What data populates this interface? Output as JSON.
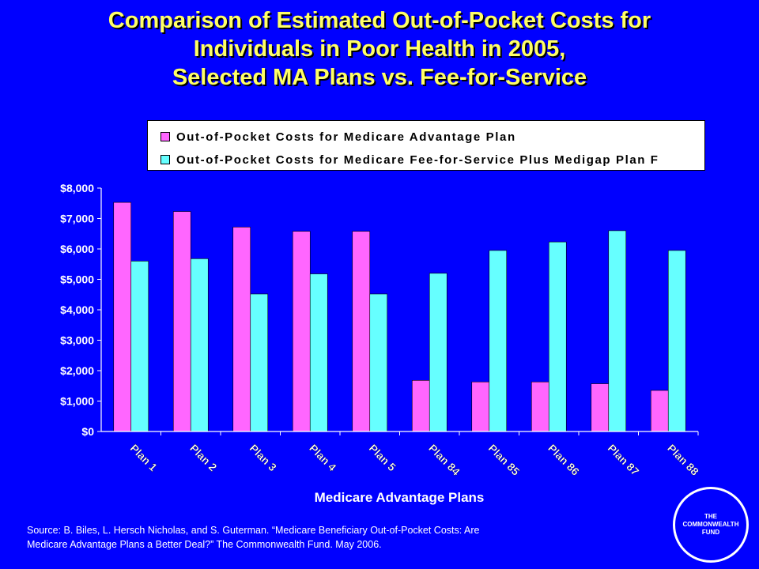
{
  "title_lines": [
    "Comparison of Estimated Out-of-Pocket Costs for",
    "Individuals in Poor Health in 2005,",
    "Selected MA Plans vs. Fee-for-Service"
  ],
  "colors": {
    "background": "#0000FF",
    "title": "#FFFF66",
    "ma": "#FF66FF",
    "ffs": "#66FFFF"
  },
  "chart_data": {
    "type": "bar",
    "categories": [
      "Plan 1",
      "Plan 2",
      "Plan 3",
      "Plan 4",
      "Plan 5",
      "Plan 84",
      "Plan 85",
      "Plan 86",
      "Plan 87",
      "Plan 88"
    ],
    "series": [
      {
        "name": "Out-of-Pocket Costs for Medicare Advantage Plan",
        "values": [
          7530,
          7230,
          6720,
          6580,
          6580,
          1680,
          1630,
          1630,
          1570,
          1350
        ]
      },
      {
        "name": "Out-of-Pocket Costs for Medicare Fee-for-Service Plus Medigap Plan F",
        "values": [
          5600,
          5680,
          4520,
          5180,
          4520,
          5200,
          5950,
          6230,
          6600,
          5950
        ]
      }
    ],
    "xlabel": "Medicare Advantage Plans",
    "ylabel": "",
    "ylim": [
      0,
      8000
    ],
    "yticks": [
      "$0",
      "$1,000",
      "$2,000",
      "$3,000",
      "$4,000",
      "$5,000",
      "$6,000",
      "$7,000",
      "$8,000"
    ],
    "grid": false,
    "legend": "top"
  },
  "source": {
    "line1": "Source: B. Biles, L. Hersch Nicholas, and S. Guterman. “Medicare Beneficiary Out-of-Pocket Costs: Are",
    "line2": "Medicare Advantage Plans a Better Deal?” The Commonwealth Fund. May 2006."
  },
  "logo": {
    "line1": "THE",
    "line2": "COMMONWEALTH",
    "line3": "FUND"
  }
}
